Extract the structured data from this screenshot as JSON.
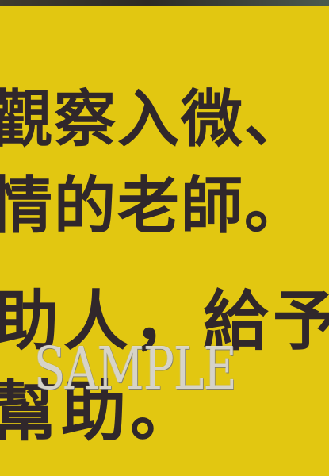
{
  "sign": {
    "lines": [
      "觀察入微、",
      "情的老師。",
      "助人，給予",
      "幫助。"
    ],
    "watermark": "SAMPLE",
    "background_color": "#e2c711",
    "text_color": "#30272b"
  }
}
